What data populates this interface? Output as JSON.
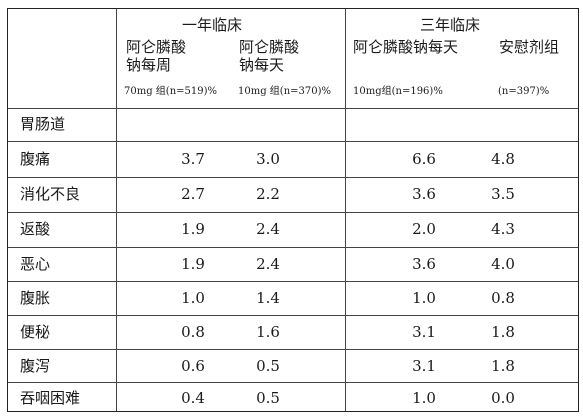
{
  "header": {
    "group1": "一年临床",
    "group2": "三年临床",
    "col1_line1": "阿仑膦酸",
    "col1_line2": "钠每周",
    "col1_note": "70mg 组(n=519)%",
    "col2_line1": "阿仑膦酸",
    "col2_line2": "钠每天",
    "col2_note": "10mg 组(n=370)%",
    "col3_line1": "阿仑膦酸钠每天",
    "col3_note": "10mg组(n=196)%",
    "col4_line1": "安慰剂组",
    "col4_note": "(n=397)%"
  },
  "section_label": "胃肠道",
  "rows": [
    {
      "label": "腹痛",
      "v": [
        "3.7",
        "3.0",
        "6.6",
        "4.8"
      ]
    },
    {
      "label": "消化不良",
      "v": [
        "2.7",
        "2.2",
        "3.6",
        "3.5"
      ]
    },
    {
      "label": "返酸",
      "v": [
        "1.9",
        "2.4",
        "2.0",
        "4.3"
      ]
    },
    {
      "label": "恶心",
      "v": [
        "1.9",
        "2.4",
        "3.6",
        "4.0"
      ]
    },
    {
      "label": "腹胀",
      "v": [
        "1.0",
        "1.4",
        "1.0",
        "0.8"
      ]
    },
    {
      "label": "便秘",
      "v": [
        "0.8",
        "1.6",
        "3.1",
        "1.8"
      ]
    },
    {
      "label": "腹泻",
      "v": [
        "0.6",
        "0.5",
        "3.1",
        "1.8"
      ]
    },
    {
      "label": "吞咽困难",
      "v": [
        "0.4",
        "0.5",
        "1.0",
        "0.0"
      ]
    }
  ]
}
